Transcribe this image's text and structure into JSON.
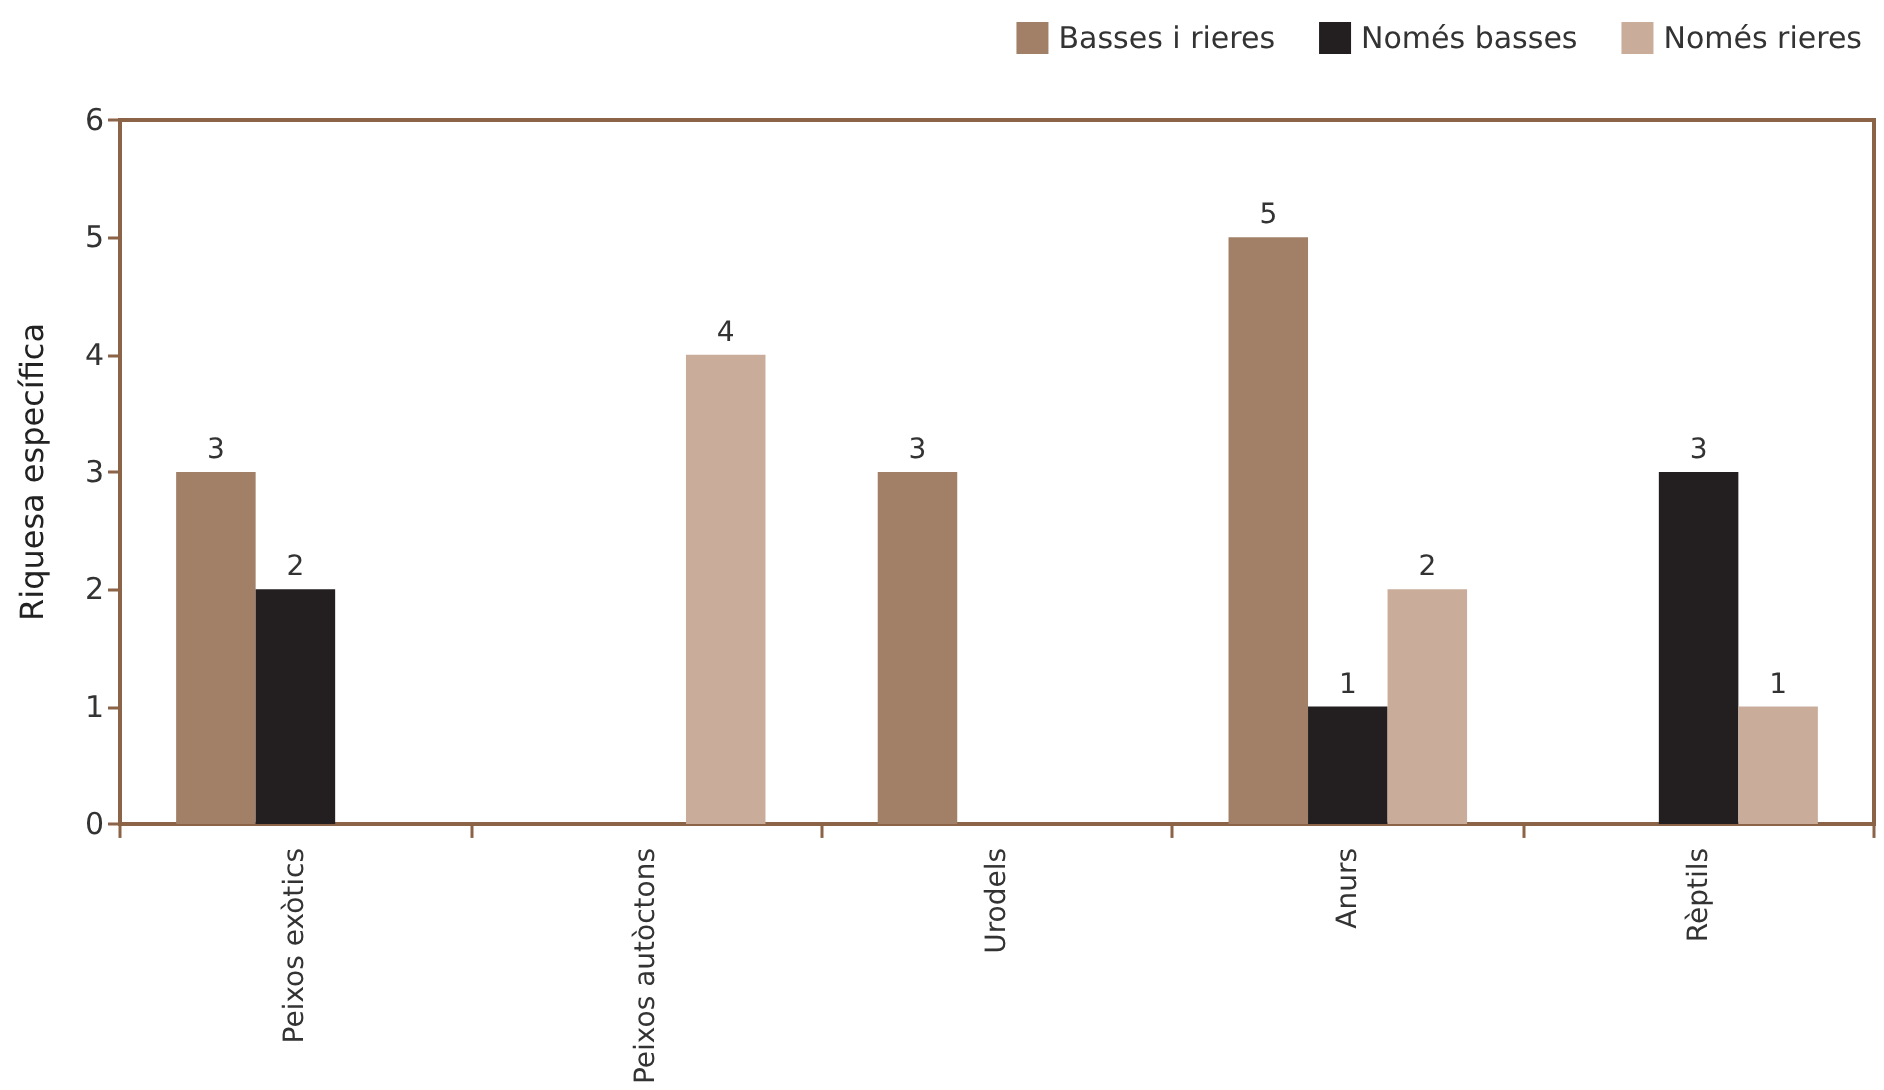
{
  "chart_data": {
    "type": "bar",
    "categories": [
      "Peixos exòtics",
      "Peixos autòctons",
      "Urodels",
      "Anurs",
      "Rèptils"
    ],
    "series": [
      {
        "name": "Basses i rieres",
        "color": "#a28067",
        "values": [
          3,
          null,
          3,
          5,
          null
        ]
      },
      {
        "name": "Només basses",
        "color": "#231f20",
        "values": [
          2,
          null,
          null,
          1,
          3
        ]
      },
      {
        "name": "Només rieres",
        "color": "#c9ad9a",
        "values": [
          null,
          4,
          null,
          2,
          1
        ]
      }
    ],
    "ylabel": "Riquesa específica",
    "ylim": [
      0,
      6
    ],
    "yticks": [
      0,
      1,
      2,
      3,
      4,
      5,
      6
    ],
    "data_labels": true,
    "legend": "top right"
  }
}
